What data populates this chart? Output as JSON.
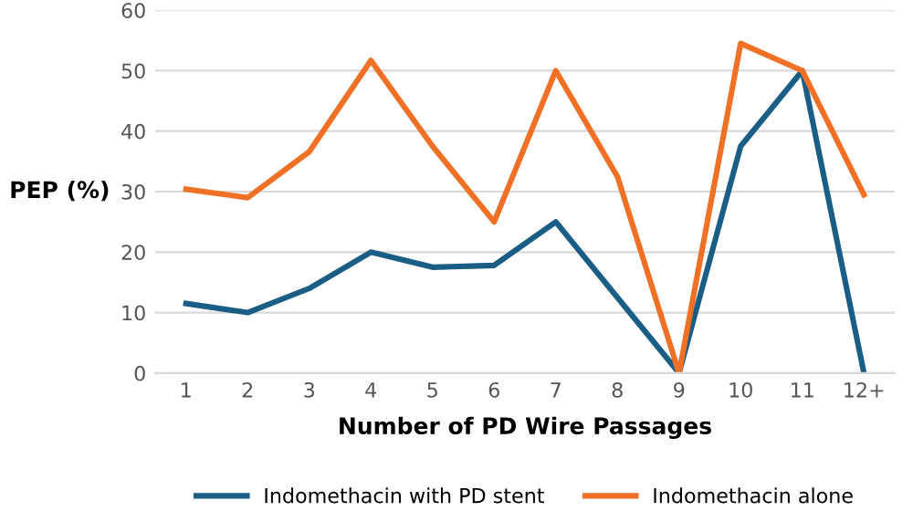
{
  "chart_data": {
    "type": "line",
    "xlabel": "Number of PD Wire Passages",
    "ylabel": "PEP (%)",
    "categories": [
      "1",
      "2",
      "3",
      "4",
      "5",
      "6",
      "7",
      "8",
      "9",
      "10",
      "11",
      "12+"
    ],
    "series": [
      {
        "name": "Indomethacin with PD stent",
        "color": "#1a5e85",
        "values": [
          11.5,
          10,
          14,
          20,
          17.5,
          17.8,
          25,
          12.5,
          0,
          37.5,
          50,
          0
        ]
      },
      {
        "name": "Indomethacin alone",
        "color": "#f07125",
        "values": [
          30.4,
          29,
          36.6,
          51.7,
          37.5,
          25,
          50,
          32.5,
          0,
          54.5,
          50,
          29.5
        ]
      }
    ],
    "ylim": [
      0,
      60
    ],
    "yticks": [
      0,
      10,
      20,
      30,
      40,
      50,
      60
    ],
    "grid": "y",
    "legend": "bottom",
    "marker": "none",
    "line_style": "solid"
  }
}
